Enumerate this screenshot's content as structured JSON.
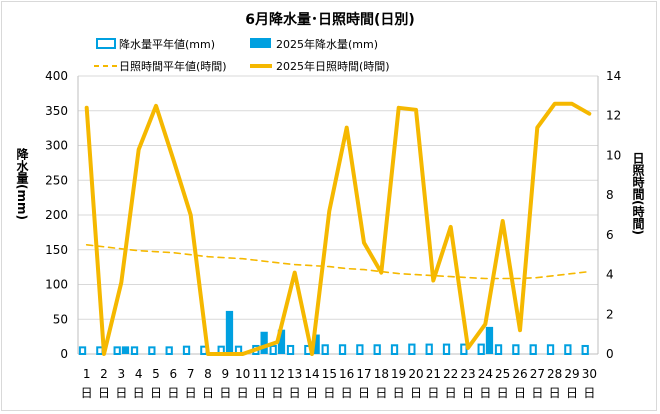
{
  "chart_data": {
    "type": "bar",
    "title": "6月降水量･日照時間(日別)",
    "ylabel_left": "降水量(mm)",
    "ylabel_right": "日照時間(時間)",
    "ylim_left": [
      0,
      400
    ],
    "ylim_right": [
      0,
      14
    ],
    "yticks_left": [
      "0",
      "50",
      "100",
      "150",
      "200",
      "250",
      "300",
      "350",
      "400"
    ],
    "yticks_right": [
      "0",
      "2",
      "4",
      "6",
      "8",
      "10",
      "12",
      "14"
    ],
    "categories": [
      "1",
      "2",
      "3",
      "4",
      "5",
      "6",
      "7",
      "8",
      "9",
      "10",
      "11",
      "12",
      "13",
      "14",
      "15",
      "16",
      "17",
      "18",
      "19",
      "20",
      "21",
      "22",
      "23",
      "24",
      "25",
      "26",
      "27",
      "28",
      "29",
      "30"
    ],
    "day_unit": "日",
    "series": [
      {
        "name": "降水量平年値(mm)",
        "kind": "bar-outline",
        "color": "#00a0e0",
        "axis": "left",
        "values": [
          11,
          11,
          11,
          11,
          11,
          11,
          12,
          12,
          12,
          12,
          13,
          13,
          13,
          13,
          14,
          14,
          14,
          14,
          14,
          15,
          15,
          15,
          15,
          15,
          14,
          14,
          14,
          14,
          14,
          13
        ]
      },
      {
        "name": "2025年降水量(mm)",
        "kind": "bar-solid",
        "color": "#00a0e0",
        "axis": "left",
        "values": [
          0,
          0,
          11,
          0,
          0,
          0,
          0,
          0,
          62,
          0,
          32,
          35,
          0,
          28,
          0,
          0,
          0,
          0,
          0,
          0,
          0,
          0,
          0,
          39,
          0,
          0,
          0,
          0,
          0,
          0
        ]
      },
      {
        "name": "日照時間平年値(時間)",
        "kind": "line-dashed",
        "color": "#f5b800",
        "axis": "right",
        "values": [
          5.5,
          5.4,
          5.3,
          5.2,
          5.15,
          5.1,
          5.0,
          4.9,
          4.85,
          4.8,
          4.7,
          4.6,
          4.5,
          4.45,
          4.4,
          4.3,
          4.25,
          4.15,
          4.05,
          4.0,
          3.95,
          3.9,
          3.85,
          3.8,
          3.8,
          3.8,
          3.85,
          3.95,
          4.05,
          4.15
        ]
      },
      {
        "name": "2025年日照時間(時間)",
        "kind": "line-solid",
        "color": "#f5b800",
        "axis": "right",
        "values": [
          12.4,
          0.0,
          3.6,
          10.3,
          12.5,
          9.8,
          7.0,
          0.0,
          0.0,
          0.0,
          0.3,
          0.6,
          4.1,
          0.0,
          7.2,
          11.4,
          5.6,
          4.1,
          12.4,
          12.3,
          3.7,
          6.4,
          0.3,
          1.5,
          6.7,
          1.2,
          11.4,
          12.6,
          12.6,
          12.1
        ]
      }
    ]
  }
}
